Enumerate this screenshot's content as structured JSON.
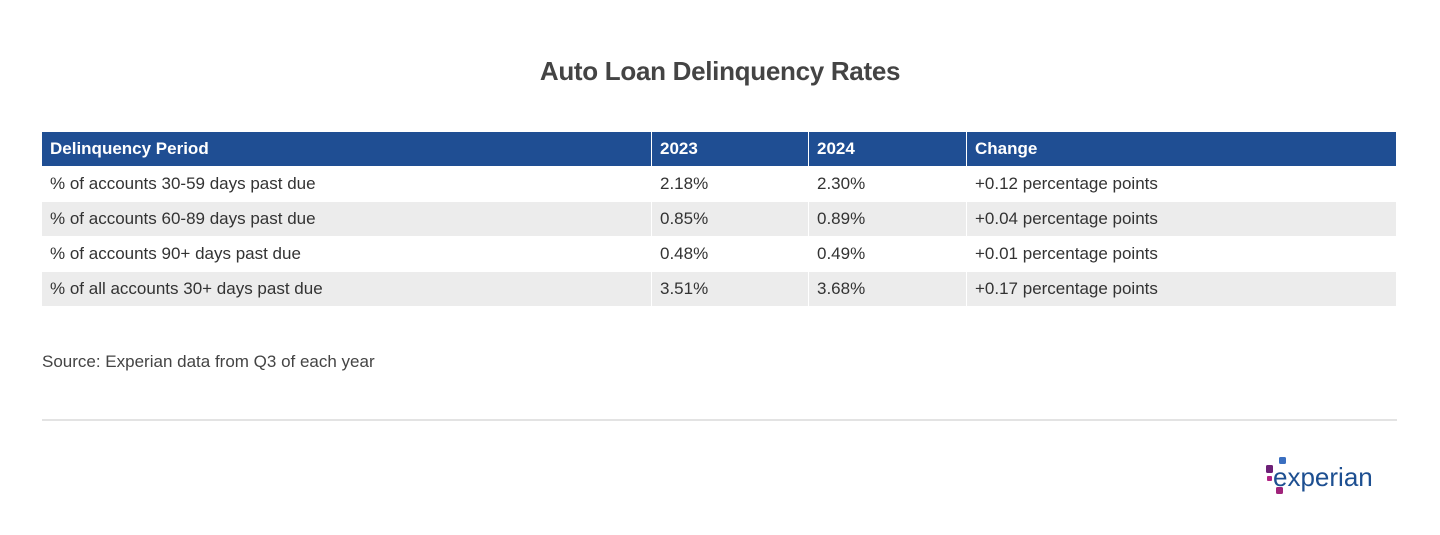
{
  "header": {
    "title": "Auto Loan Delinquency Rates"
  },
  "table": {
    "columns": [
      "Delinquency Period",
      "2023",
      "2024",
      "Change"
    ],
    "rows": [
      [
        "% of accounts 30-59 days past due",
        "2.18%",
        "2.30%",
        "+0.12 percentage points"
      ],
      [
        "% of accounts 60-89 days past due",
        "0.85%",
        "0.89%",
        "+0.04 percentage points"
      ],
      [
        "% of accounts 90+ days past due",
        "0.48%",
        "0.49%",
        "+0.01 percentage points"
      ],
      [
        "% of all accounts 30+ days past due",
        "3.51%",
        "3.68%",
        "+0.17 percentage points"
      ]
    ]
  },
  "source": "Source: Experian data from Q3 of each year",
  "logo": {
    "text": "experian"
  }
}
